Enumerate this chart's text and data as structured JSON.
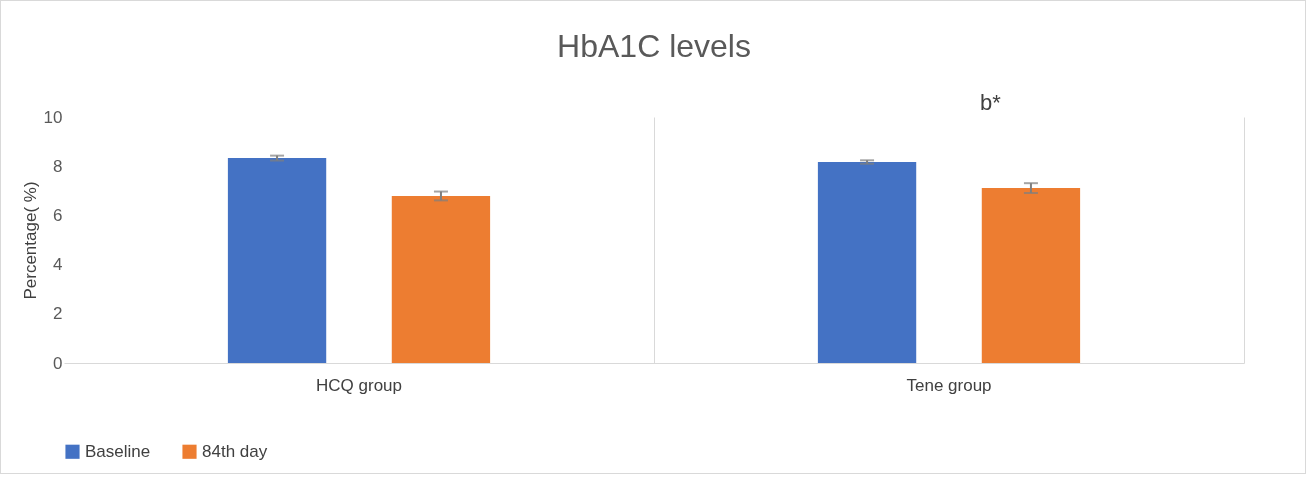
{
  "chart_data": {
    "type": "bar",
    "title": "HbA1C levels",
    "ylabel": "Percentage( %)",
    "categories": [
      "HCQ group",
      "Tene group"
    ],
    "series": [
      {
        "name": "Baseline",
        "color": "#4472c4",
        "values": [
          8.33,
          8.17
        ],
        "errors": [
          0.1,
          0.07
        ]
      },
      {
        "name": "84th day",
        "color": "#ed7d31",
        "values": [
          6.79,
          7.11
        ],
        "errors": [
          0.18,
          0.2
        ]
      }
    ],
    "ylim": [
      0,
      10
    ],
    "yticks": [
      0,
      2,
      4,
      6,
      8,
      10
    ],
    "grid": false,
    "legend": "bottom",
    "annotations": [
      "b*"
    ]
  }
}
